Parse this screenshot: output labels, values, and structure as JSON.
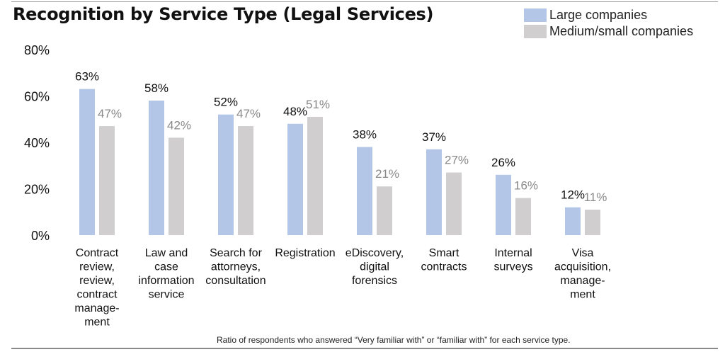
{
  "chart_data": {
    "type": "bar",
    "title": "Recognition by Service Type (Legal Services)",
    "xlabel": "",
    "ylabel": "",
    "ylim": [
      0,
      80
    ],
    "yticks": [
      "0%",
      "20%",
      "40%",
      "60%",
      "80%"
    ],
    "grid": false,
    "legend_position": "top-right",
    "categories": [
      [
        "Contract",
        "review,",
        "review,",
        "contract",
        "manage-",
        "ment"
      ],
      [
        "Law and",
        "case",
        "information",
        "service"
      ],
      [
        "Search for",
        "attorneys,",
        "consultation"
      ],
      [
        "Registration"
      ],
      [
        "eDiscovery,",
        "digital",
        "forensics"
      ],
      [
        "Smart",
        "contracts"
      ],
      [
        "Internal",
        "surveys"
      ],
      [
        "Visa",
        "acquisition,",
        "manage-",
        "ment"
      ]
    ],
    "series": [
      {
        "name": "Large companies",
        "color": "#b3c6e7",
        "label_color": "#111111",
        "values": [
          63,
          58,
          52,
          48,
          38,
          37,
          26,
          12
        ],
        "labels": [
          "63%",
          "58%",
          "52%",
          "48%",
          "38%",
          "37%",
          "26%",
          "12%"
        ]
      },
      {
        "name": "Medium/small companies",
        "color": "#d0cece",
        "label_color": "#888888",
        "values": [
          47,
          42,
          47,
          51,
          21,
          27,
          16,
          11
        ],
        "labels": [
          "47%",
          "42%",
          "47%",
          "51%",
          "21%",
          "27%",
          "16%",
          "11%"
        ]
      }
    ],
    "footnote": "Ratio of respondents who answered “Very familiar with” or “familiar with” for each service type."
  }
}
